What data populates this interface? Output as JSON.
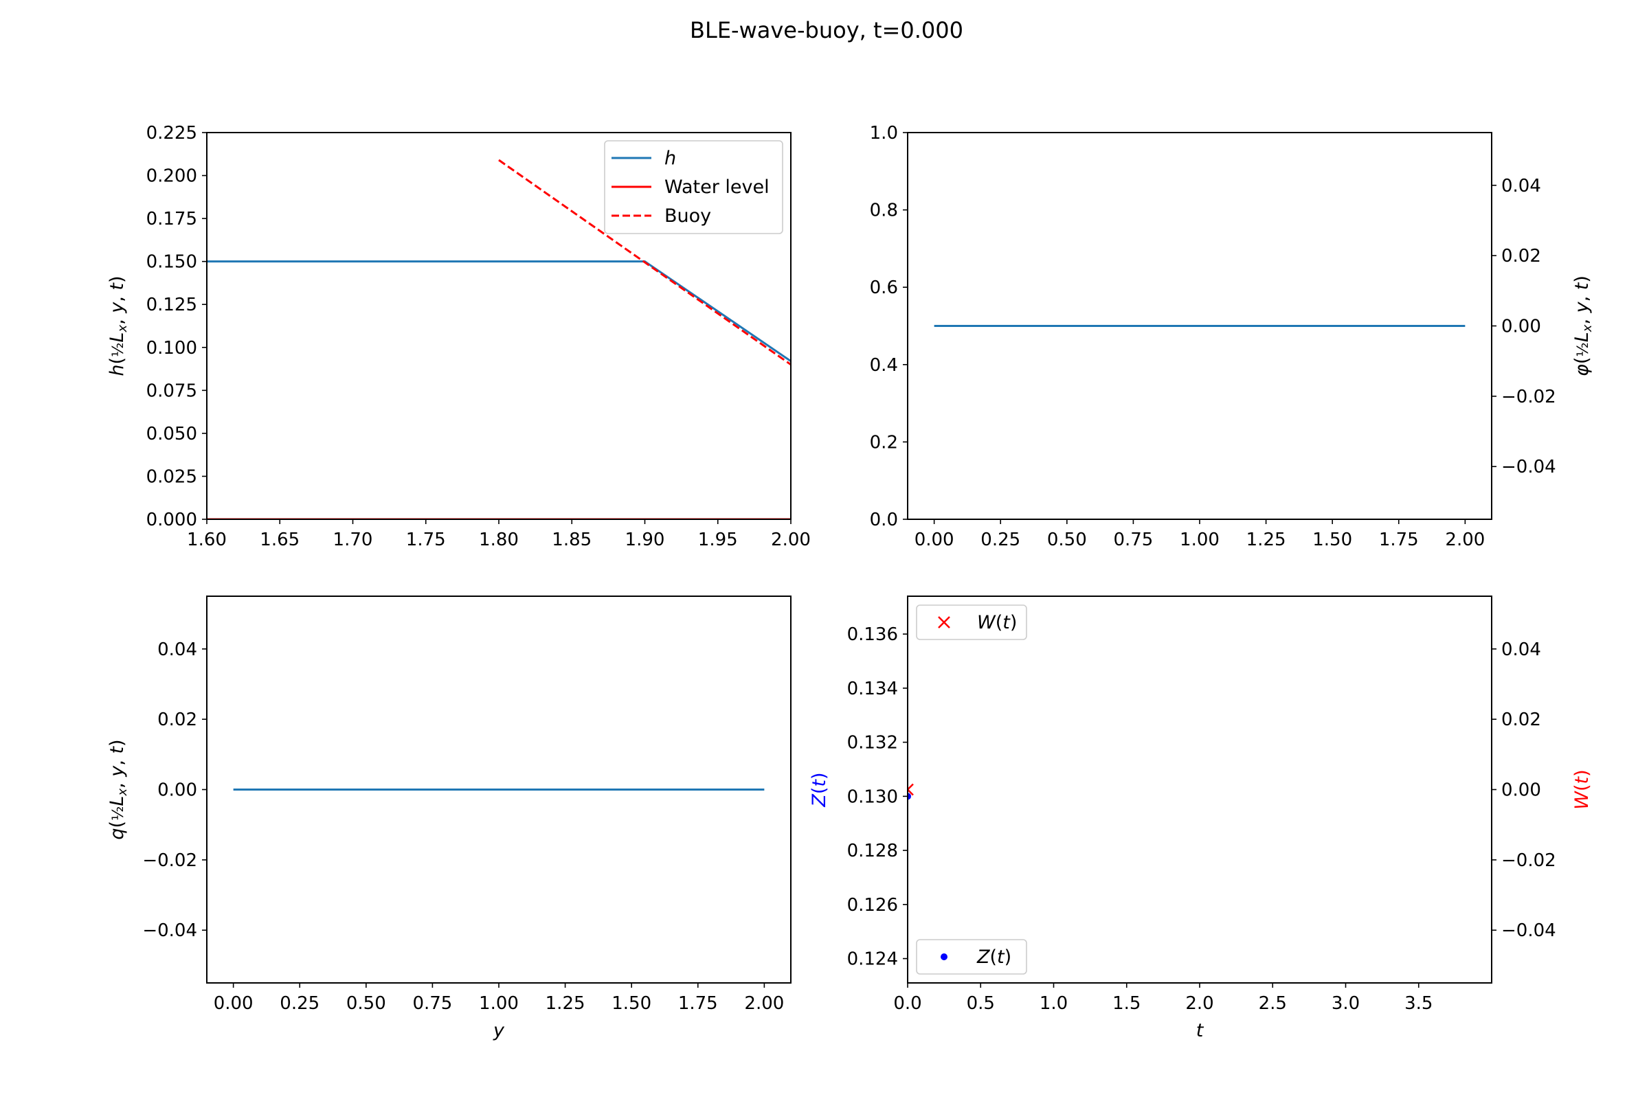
{
  "figure": {
    "title": "BLE-wave-buoy, t=0.000"
  },
  "chart_data": [
    {
      "type": "line",
      "panel": "top-left",
      "xlabel": "",
      "ylabel": "h(½Lx, y, t)",
      "xlim": [
        1.6,
        2.0
      ],
      "ylim": [
        0.0,
        0.225
      ],
      "xticks": [
        1.6,
        1.65,
        1.7,
        1.75,
        1.8,
        1.85,
        1.9,
        1.95,
        2.0
      ],
      "xtick_labels": [
        "1.60",
        "1.65",
        "1.70",
        "1.75",
        "1.80",
        "1.85",
        "1.90",
        "1.95",
        "2.00"
      ],
      "yticks": [
        0.0,
        0.025,
        0.05,
        0.075,
        0.1,
        0.125,
        0.15,
        0.175,
        0.2,
        0.225
      ],
      "ytick_labels": [
        "0.000",
        "0.025",
        "0.050",
        "0.075",
        "0.100",
        "0.125",
        "0.150",
        "0.175",
        "0.200",
        "0.225"
      ],
      "legend_position": "upper-right",
      "series": [
        {
          "name": "h",
          "color": "#1f77b4",
          "dash": "solid",
          "x": [
            1.6,
            1.9,
            2.0
          ],
          "y": [
            0.15,
            0.15,
            0.092
          ]
        },
        {
          "name": "Water level",
          "color": "#ff0000",
          "dash": "solid",
          "x": [
            1.6,
            2.0
          ],
          "y": [
            0.0,
            0.0
          ]
        },
        {
          "name": "Buoy",
          "color": "#ff0000",
          "dash": "dashed",
          "x": [
            1.8,
            2.0
          ],
          "y": [
            0.209,
            0.09
          ]
        }
      ]
    },
    {
      "type": "line",
      "panel": "top-right",
      "xlabel": "",
      "ylabel": "",
      "xlim": [
        -0.1,
        2.1
      ],
      "ylim": [
        0.0,
        1.0
      ],
      "xticks": [
        0,
        0.25,
        0.5,
        0.75,
        1.0,
        1.25,
        1.5,
        1.75,
        2.0
      ],
      "xtick_labels": [
        "0.00",
        "0.25",
        "0.50",
        "0.75",
        "1.00",
        "1.25",
        "1.50",
        "1.75",
        "2.00"
      ],
      "yticks": [
        0,
        0.2,
        0.4,
        0.6,
        0.8,
        1.0
      ],
      "ytick_labels": [
        "0.0",
        "0.2",
        "0.4",
        "0.6",
        "0.8",
        "1.0"
      ],
      "y2label": "φ(½Lx, y, t)",
      "y2lim": [
        -0.055,
        0.055
      ],
      "y2ticks": [
        -0.04,
        -0.02,
        0.0,
        0.02,
        0.04
      ],
      "y2tick_labels": [
        "−0.04",
        "−0.02",
        "0.00",
        "0.02",
        "0.04"
      ],
      "series": [
        {
          "color": "#1f77b4",
          "dash": "solid",
          "axis": "y2",
          "x": [
            0,
            2
          ],
          "y": [
            0,
            0
          ]
        }
      ]
    },
    {
      "type": "line",
      "panel": "bottom-left",
      "xlabel": "y",
      "ylabel": "q(½Lx, y, t)",
      "xlim": [
        -0.1,
        2.1
      ],
      "ylim": [
        -0.055,
        0.055
      ],
      "xticks": [
        0,
        0.25,
        0.5,
        0.75,
        1.0,
        1.25,
        1.5,
        1.75,
        2.0
      ],
      "xtick_labels": [
        "0.00",
        "0.25",
        "0.50",
        "0.75",
        "1.00",
        "1.25",
        "1.50",
        "1.75",
        "2.00"
      ],
      "yticks": [
        -0.04,
        -0.02,
        0.0,
        0.02,
        0.04
      ],
      "ytick_labels": [
        "−0.04",
        "−0.02",
        "0.00",
        "0.02",
        "0.04"
      ],
      "series": [
        {
          "color": "#1f77b4",
          "dash": "solid",
          "x": [
            0,
            2
          ],
          "y": [
            0,
            0
          ]
        }
      ]
    },
    {
      "type": "scatter",
      "panel": "bottom-right",
      "xlabel": "t",
      "ylabel": "Z(t)",
      "ylabel_color": "#0000ff",
      "xlim": [
        0.0,
        4.0
      ],
      "ylim": [
        0.1231,
        0.1374
      ],
      "xticks": [
        0,
        0.5,
        1.0,
        1.5,
        2.0,
        2.5,
        3.0,
        3.5
      ],
      "xtick_labels": [
        "0.0",
        "0.5",
        "1.0",
        "1.5",
        "2.0",
        "2.5",
        "3.0",
        "3.5"
      ],
      "yticks": [
        0.124,
        0.126,
        0.128,
        0.13,
        0.132,
        0.134,
        0.136
      ],
      "ytick_labels": [
        "0.124",
        "0.126",
        "0.128",
        "0.130",
        "0.132",
        "0.134",
        "0.136"
      ],
      "y2label": "W(t)",
      "y2label_color": "#ff0000",
      "y2lim": [
        -0.055,
        0.055
      ],
      "y2ticks": [
        -0.04,
        -0.02,
        0.0,
        0.02,
        0.04
      ],
      "y2tick_labels": [
        "−0.04",
        "−0.02",
        "0.00",
        "0.02",
        "0.04"
      ],
      "series": [
        {
          "name": "Z(t)",
          "marker": "dot",
          "color": "#0000ff",
          "axis": "y",
          "legend_position": "lower-left",
          "x": [
            0.0
          ],
          "y": [
            0.13
          ]
        },
        {
          "name": "W(t)",
          "marker": "x",
          "color": "#ff0000",
          "axis": "y2",
          "legend_position": "upper-left",
          "x": [
            0.0
          ],
          "y": [
            0.0
          ]
        }
      ]
    }
  ]
}
